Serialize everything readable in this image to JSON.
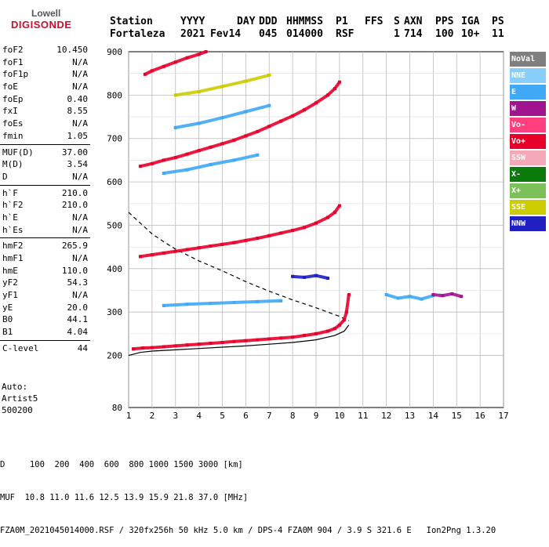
{
  "logo": {
    "line1": "Lowell",
    "line2": "DIGISONDE"
  },
  "header": {
    "row1": [
      "Station",
      "YYYY",
      "DAY",
      "DDD",
      "HHMMSS",
      "P1",
      "FFS",
      "S",
      "AXN",
      "PPS",
      "IGA",
      "PS"
    ],
    "row2": [
      "Fortaleza",
      "2021",
      "Fev14",
      "045",
      "014000",
      "RSF",
      "1",
      "714",
      "100",
      "10+",
      "11"
    ]
  },
  "params": [
    {
      "label": "foF2",
      "value": "10.450"
    },
    {
      "label": "foF1",
      "value": "N/A"
    },
    {
      "label": "foF1p",
      "value": "N/A"
    },
    {
      "label": "foE",
      "value": "N/A"
    },
    {
      "label": "foEp",
      "value": "0.40"
    },
    {
      "label": "fxI",
      "value": "8.55"
    },
    {
      "label": "foEs",
      "value": "N/A"
    },
    {
      "label": "fmin",
      "value": "1.05"
    },
    {
      "sep": true
    },
    {
      "label": "MUF(D)",
      "value": "37.00"
    },
    {
      "label": "M(D)",
      "value": "3.54"
    },
    {
      "label": "D",
      "value": "N/A"
    },
    {
      "sep": true
    },
    {
      "label": "h`F",
      "value": "210.0"
    },
    {
      "label": "h`F2",
      "value": "210.0"
    },
    {
      "label": "h`E",
      "value": "N/A"
    },
    {
      "label": "h`Es",
      "value": "N/A"
    },
    {
      "sep": true
    },
    {
      "label": "hmF2",
      "value": "265.9"
    },
    {
      "label": "hmF1",
      "value": "N/A"
    },
    {
      "label": "hmE",
      "value": "110.0"
    },
    {
      "label": "yF2",
      "value": "54.3"
    },
    {
      "label": "yF1",
      "value": "N/A"
    },
    {
      "label": "yE",
      "value": "20.0"
    },
    {
      "label": "B0",
      "value": "44.1"
    },
    {
      "label": "B1",
      "value": "4.04"
    },
    {
      "sep": true
    },
    {
      "label": "C-level",
      "value": "44"
    }
  ],
  "auto": [
    "Auto:",
    "Artist5",
    "500200"
  ],
  "legend": [
    {
      "label": "NoVal",
      "color": "#7f7f7f"
    },
    {
      "label": "NNE",
      "color": "#87cefa"
    },
    {
      "label": "E",
      "color": "#3fa9f5"
    },
    {
      "label": "W",
      "color": "#a0158f"
    },
    {
      "label": "Vo-",
      "color": "#ff3f7f"
    },
    {
      "label": "Vo+",
      "color": "#e8002a"
    },
    {
      "label": "SSW",
      "color": "#f5a9b8"
    },
    {
      "label": "X-",
      "color": "#0a7a0a"
    },
    {
      "label": "X+",
      "color": "#7cc05a"
    },
    {
      "label": "SSE",
      "color": "#cccc00"
    },
    {
      "label": "NNW",
      "color": "#2020c0"
    }
  ],
  "footer": {
    "line1": "D     100  200  400  600  800 1000 1500 3000 [km]",
    "line2": "MUF  10.8 11.0 11.6 12.5 13.9 15.9 21.8 37.0 [MHz]",
    "line3": "FZA0M_2021045014000.RSF / 320fx256h 50 kHz 5.0 km / DPS-4 FZA0M 904 / 3.9 S 321.6 E   Ion2Png 1.3.20"
  },
  "chart_data": {
    "type": "scatter",
    "xlim": [
      1,
      17
    ],
    "ylim": [
      80,
      900
    ],
    "xticks": [
      "1",
      "2",
      "3",
      "4",
      "5",
      "6",
      "7",
      "8",
      "9",
      "10",
      "11",
      "12",
      "13",
      "14",
      "15",
      "16",
      "17"
    ],
    "yticks": [
      "80",
      "200",
      "300",
      "400",
      "500",
      "600",
      "700",
      "800",
      "900"
    ],
    "grid": true,
    "series": [
      {
        "color": "#e8002a",
        "x": [
          1.2,
          1.6,
          2.0,
          2.5,
          3.0,
          3.5,
          4.0,
          4.5,
          5.0,
          5.5,
          6.0,
          6.5,
          7.0,
          7.5,
          8.0,
          8.5,
          9.0,
          9.5,
          9.8,
          10.0,
          10.2,
          10.3,
          10.4
        ],
        "y": [
          215,
          217,
          218,
          220,
          222,
          224,
          226,
          228,
          230,
          232,
          234,
          236,
          238,
          240,
          242,
          246,
          250,
          256,
          262,
          270,
          282,
          300,
          340
        ]
      },
      {
        "color": "#e8002a",
        "x": [
          1.5,
          2.0,
          2.5,
          3.0,
          3.5,
          4.0,
          4.5,
          5.0,
          5.5,
          6.0,
          6.5,
          7.0,
          7.5,
          8.0,
          8.5,
          9.0,
          9.5,
          9.8,
          10.0
        ],
        "y": [
          428,
          432,
          436,
          440,
          444,
          448,
          452,
          456,
          460,
          465,
          470,
          476,
          482,
          488,
          495,
          505,
          518,
          530,
          545
        ]
      },
      {
        "color": "#e8002a",
        "x": [
          1.5,
          2.0,
          2.5,
          3.0,
          3.5,
          4.0,
          4.5,
          5.0,
          5.5,
          6.0,
          6.5,
          7.0,
          7.5,
          8.0,
          8.5,
          9.0,
          9.5,
          9.8,
          10.0
        ],
        "y": [
          636,
          642,
          650,
          656,
          664,
          672,
          680,
          688,
          696,
          706,
          716,
          728,
          740,
          752,
          766,
          782,
          800,
          815,
          830
        ]
      },
      {
        "color": "#e8002a",
        "x": [
          1.7,
          2.0,
          2.5,
          3.0,
          3.5,
          4.0,
          4.3
        ],
        "y": [
          848,
          856,
          866,
          876,
          886,
          894,
          900
        ]
      },
      {
        "color": "#3fa9f5",
        "x": [
          12.0,
          12.5,
          13.0,
          13.5,
          14.0
        ],
        "y": [
          340,
          332,
          336,
          330,
          338
        ]
      },
      {
        "color": "#a0158f",
        "x": [
          14.0,
          14.4,
          14.8,
          15.2
        ],
        "y": [
          340,
          338,
          342,
          336
        ]
      },
      {
        "color": "#3fa9f5",
        "x": [
          2.5,
          3.5,
          4.5,
          5.5,
          6.5,
          7.5
        ],
        "y": [
          315,
          318,
          320,
          322,
          324,
          326
        ]
      },
      {
        "color": "#3fa9f5",
        "x": [
          2.5,
          3.5,
          4.5,
          5.5,
          6.5
        ],
        "y": [
          620,
          628,
          640,
          650,
          662
        ]
      },
      {
        "color": "#3fa9f5",
        "x": [
          3.0,
          4.0,
          5.0,
          6.0,
          7.0
        ],
        "y": [
          725,
          735,
          748,
          762,
          776
        ]
      },
      {
        "color": "#cccc00",
        "x": [
          3.0,
          4.0,
          5.0,
          6.0,
          7.0
        ],
        "y": [
          800,
          808,
          820,
          832,
          846
        ]
      },
      {
        "color": "#2020c0",
        "x": [
          8.0,
          8.5,
          9.0,
          9.5
        ],
        "y": [
          382,
          380,
          384,
          378
        ]
      }
    ],
    "curves": [
      {
        "name": "",
        "style": "solid",
        "x": [
          1.0,
          1.5,
          2.0,
          3.0,
          4.0,
          5.0,
          6.0,
          7.0,
          8.0,
          9.0,
          9.8,
          10.2,
          10.4
        ],
        "y": [
          200,
          207,
          210,
          213,
          216,
          219,
          222,
          226,
          230,
          236,
          246,
          256,
          270
        ]
      },
      {
        "name": "",
        "style": "dashed",
        "x": [
          1.0,
          1.5,
          2.0,
          2.5,
          3.0,
          4.0,
          5.0,
          6.0,
          7.0,
          8.0,
          9.0,
          9.5,
          10.0,
          10.4
        ],
        "y": [
          530,
          505,
          480,
          462,
          445,
          418,
          395,
          370,
          348,
          328,
          310,
          300,
          290,
          280
        ]
      }
    ]
  }
}
